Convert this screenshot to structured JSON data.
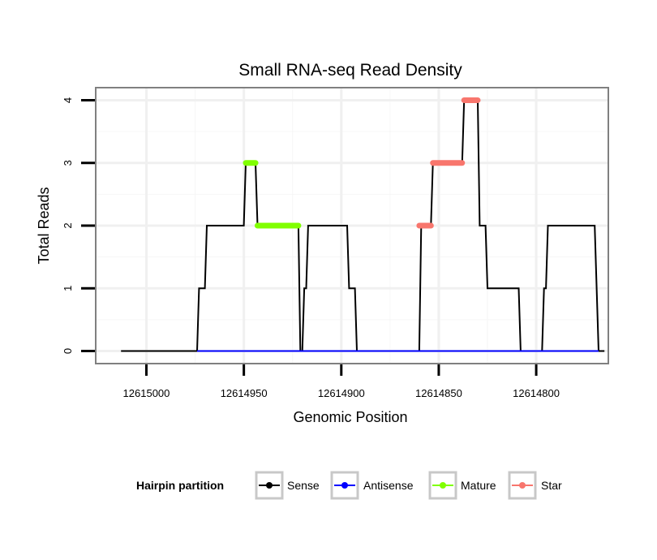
{
  "chart_data": {
    "type": "line",
    "title": "Small RNA-seq Read Density",
    "xlabel": "Genomic Position",
    "ylabel": "Total Reads",
    "x_reversed": true,
    "xlim": [
      12615026,
      12614763
    ],
    "ylim": [
      -0.2,
      4.2
    ],
    "x_ticks": [
      12615000,
      12614950,
      12614900,
      12614850,
      12614800
    ],
    "x_tick_labels": [
      "12615000",
      "12614950",
      "12614900",
      "12614850",
      "12614800"
    ],
    "y_ticks": [
      0,
      1,
      2,
      3,
      4
    ],
    "y_tick_labels": [
      "0",
      "1",
      "2",
      "3",
      "4"
    ],
    "grid": true,
    "legend": {
      "title": "Hairpin partition",
      "placement": "bottom",
      "entries": [
        "Sense",
        "Antisense",
        "Mature",
        "Star"
      ]
    },
    "series": [
      {
        "name": "Sense",
        "color": "#000000",
        "points": [
          [
            12615013,
            0
          ],
          [
            12614974,
            0
          ],
          [
            12614973,
            1
          ],
          [
            12614970,
            1
          ],
          [
            12614969,
            2
          ],
          [
            12614950,
            2
          ],
          [
            12614949,
            3
          ],
          [
            12614944,
            3
          ],
          [
            12614943,
            2
          ],
          [
            12614922,
            2
          ],
          [
            12614921,
            0
          ],
          [
            12614920,
            0
          ],
          [
            12614919,
            1
          ],
          [
            12614918,
            1
          ],
          [
            12614917,
            2
          ],
          [
            12614897,
            2
          ],
          [
            12614896,
            1
          ],
          [
            12614893,
            1
          ],
          [
            12614892,
            0
          ],
          [
            12614860,
            0
          ],
          [
            12614859,
            2
          ],
          [
            12614854,
            2
          ],
          [
            12614853,
            3
          ],
          [
            12614838,
            3
          ],
          [
            12614837,
            4
          ],
          [
            12614830,
            4
          ],
          [
            12614829,
            2
          ],
          [
            12614826,
            2
          ],
          [
            12614825,
            1
          ],
          [
            12614809,
            1
          ],
          [
            12614808,
            0
          ],
          [
            12614797,
            0
          ],
          [
            12614796,
            1
          ],
          [
            12614795,
            1
          ],
          [
            12614794,
            2
          ],
          [
            12614770,
            2
          ],
          [
            12614768,
            0
          ],
          [
            12614765,
            0
          ]
        ]
      },
      {
        "name": "Antisense",
        "color": "#0000ff",
        "points": [
          [
            12614974,
            0
          ],
          [
            12614768,
            0
          ]
        ]
      },
      {
        "name": "Mature",
        "color": "#80ff00",
        "points": [
          [
            12614949,
            3
          ],
          [
            12614944,
            3
          ],
          [
            12614943,
            2
          ],
          [
            12614922,
            2
          ]
        ],
        "segments": [
          [
            [
              12614949,
              3
            ],
            [
              12614944,
              3
            ]
          ],
          [
            [
              12614943,
              2
            ],
            [
              12614922,
              2
            ]
          ]
        ]
      },
      {
        "name": "Star",
        "color": "#f8766d",
        "points": [
          [
            12614860,
            2
          ],
          [
            12614854,
            2
          ],
          [
            12614853,
            3
          ],
          [
            12614838,
            3
          ],
          [
            12614837,
            4
          ],
          [
            12614830,
            4
          ]
        ],
        "segments": [
          [
            [
              12614860,
              2
            ],
            [
              12614854,
              2
            ]
          ],
          [
            [
              12614853,
              3
            ],
            [
              12614838,
              3
            ]
          ],
          [
            [
              12614837,
              4
            ],
            [
              12614830,
              4
            ]
          ]
        ]
      }
    ]
  }
}
